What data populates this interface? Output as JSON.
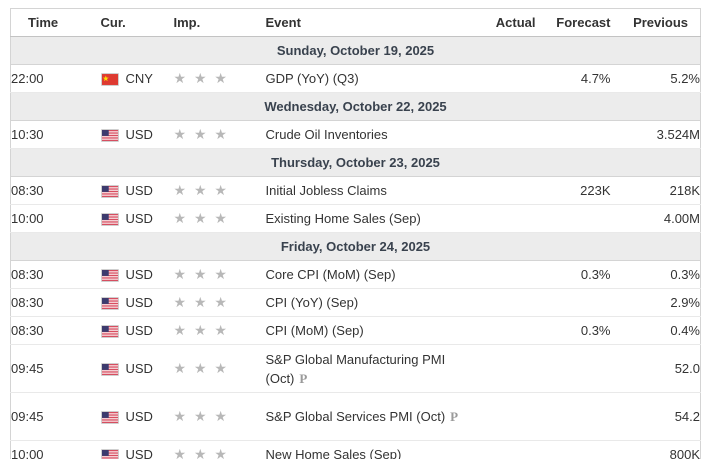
{
  "table": {
    "columns": [
      "Time",
      "Cur.",
      "Imp.",
      "Event",
      "Actual",
      "Forecast",
      "Previous"
    ],
    "groups": [
      {
        "date": "Sunday, October 19, 2025",
        "events": [
          {
            "time": "22:00",
            "currency": "CNY",
            "flag": "cn",
            "importance": 3,
            "event": "GDP (YoY) (Q3)",
            "preliminary": false,
            "actual": "",
            "forecast": "4.7%",
            "previous": "5.2%"
          }
        ]
      },
      {
        "date": "Wednesday, October 22, 2025",
        "events": [
          {
            "time": "10:30",
            "currency": "USD",
            "flag": "us",
            "importance": 3,
            "event": "Crude Oil Inventories",
            "preliminary": false,
            "actual": "",
            "forecast": "",
            "previous": "3.524M"
          }
        ]
      },
      {
        "date": "Thursday, October 23, 2025",
        "events": [
          {
            "time": "08:30",
            "currency": "USD",
            "flag": "us",
            "importance": 3,
            "event": "Initial Jobless Claims",
            "preliminary": false,
            "actual": "",
            "forecast": "223K",
            "previous": "218K"
          },
          {
            "time": "10:00",
            "currency": "USD",
            "flag": "us",
            "importance": 3,
            "event": "Existing Home Sales (Sep)",
            "preliminary": false,
            "actual": "",
            "forecast": "",
            "previous": "4.00M"
          }
        ]
      },
      {
        "date": "Friday, October 24, 2025",
        "events": [
          {
            "time": "08:30",
            "currency": "USD",
            "flag": "us",
            "importance": 3,
            "event": "Core CPI (MoM) (Sep)",
            "preliminary": false,
            "actual": "",
            "forecast": "0.3%",
            "previous": "0.3%"
          },
          {
            "time": "08:30",
            "currency": "USD",
            "flag": "us",
            "importance": 3,
            "event": "CPI (YoY) (Sep)",
            "preliminary": false,
            "actual": "",
            "forecast": "",
            "previous": "2.9%"
          },
          {
            "time": "08:30",
            "currency": "USD",
            "flag": "us",
            "importance": 3,
            "event": "CPI (MoM) (Sep)",
            "preliminary": false,
            "actual": "",
            "forecast": "0.3%",
            "previous": "0.4%"
          },
          {
            "time": "09:45",
            "currency": "USD",
            "flag": "us",
            "importance": 3,
            "event": "S&P Global Manufacturing PMI (Oct)",
            "preliminary": true,
            "actual": "",
            "forecast": "",
            "previous": "52.0"
          },
          {
            "time": "09:45",
            "currency": "USD",
            "flag": "us",
            "importance": 3,
            "event": "S&P Global Services PMI (Oct)",
            "preliminary": true,
            "actual": "",
            "forecast": "",
            "previous": "54.2"
          },
          {
            "time": "10:00",
            "currency": "USD",
            "flag": "us",
            "importance": 3,
            "event": "New Home Sales (Sep)",
            "preliminary": false,
            "actual": "",
            "forecast": "",
            "previous": "800K"
          }
        ]
      }
    ]
  },
  "icons": {
    "importance_star": "★",
    "preliminary_marker": "P"
  },
  "colors": {
    "date_row_bg": "#ececec",
    "date_text": "#39424e",
    "star_gray": "#b8b8b8",
    "outer_border": "#d4d4d4",
    "row_border": "#e9e9e9",
    "cny_flag_red": "#de3a31",
    "cny_flag_yellow": "#ffde00",
    "usd_flag_red": "#d02f44",
    "usd_flag_blue": "#3c3b6e"
  }
}
